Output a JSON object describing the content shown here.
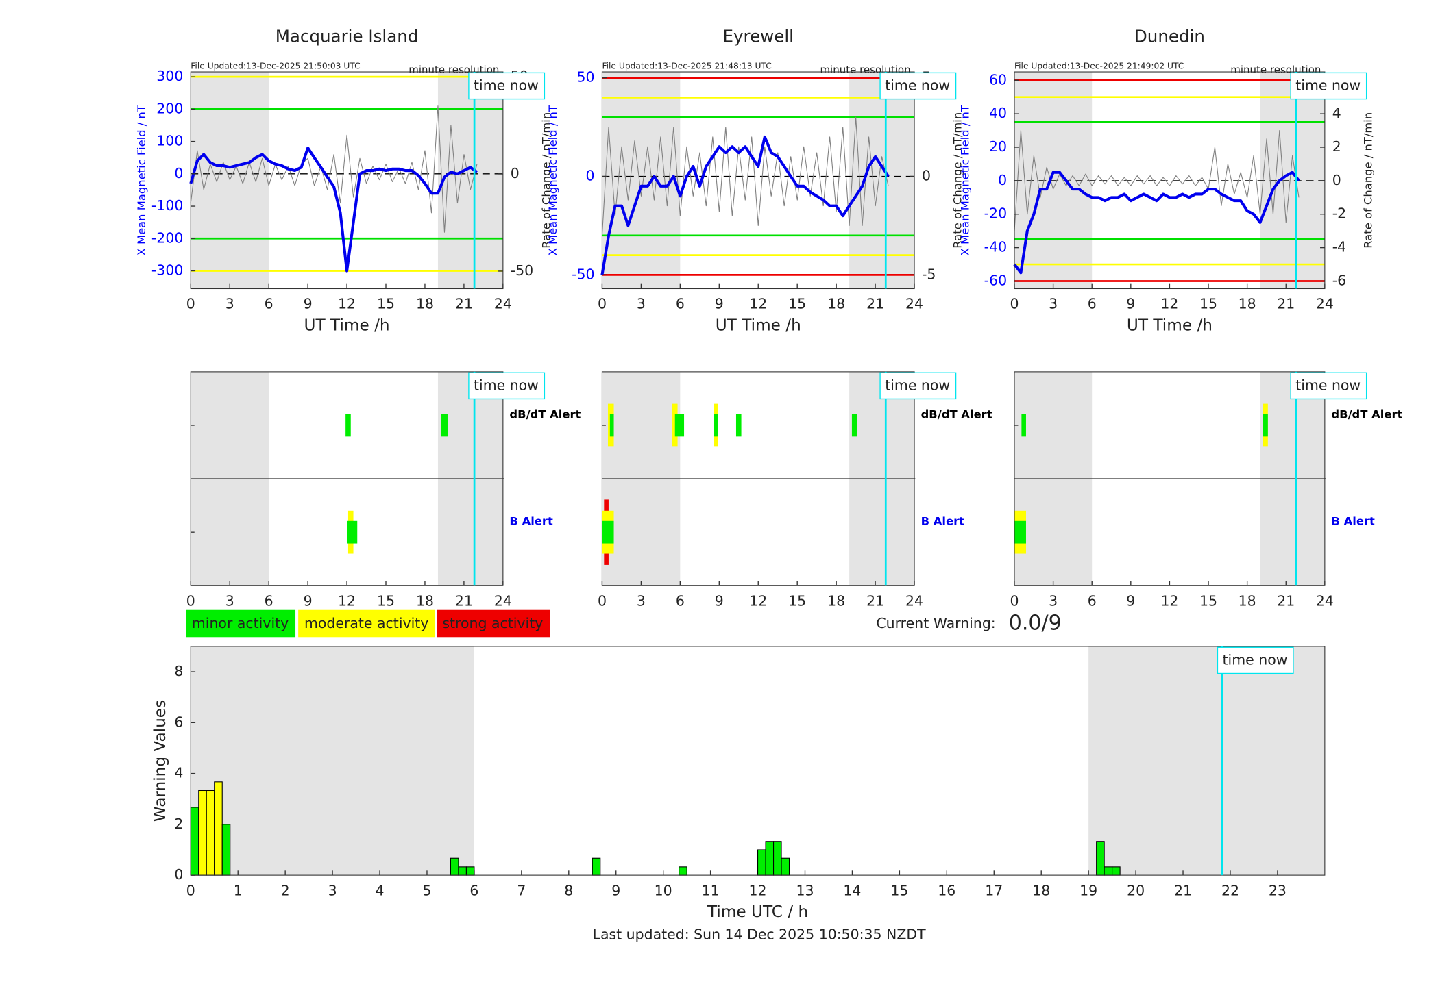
{
  "chart_data": [
    {
      "type": "line",
      "title": "Macquarie Island",
      "file_updated": "File Updated:13-Dec-2025 21:50:03 UTC",
      "resolution": "minute resolution",
      "time_now_label": "time now",
      "time_now": 21.8,
      "xlabel": "UT Time /h",
      "ylabel": "X Mean Magnetic Field / nT",
      "y2label": "Rate of Change / nT/min",
      "ycolor": "#0000ff",
      "xlim": [
        0,
        24
      ],
      "xticks": [
        0,
        3,
        6,
        9,
        12,
        15,
        18,
        21,
        24
      ],
      "ylim": [
        -355,
        315
      ],
      "yticks": [
        -300,
        -200,
        -100,
        0,
        100,
        200,
        300
      ],
      "y2lim": [
        -59,
        52.5
      ],
      "y2ticks": [
        -50,
        0,
        50
      ],
      "shaded": [
        [
          0,
          6
        ],
        [
          19,
          24
        ]
      ],
      "hlines": [
        {
          "value": 300,
          "color": "#ffff00"
        },
        {
          "value": 200,
          "color": "#00e000"
        },
        {
          "value": -200,
          "color": "#00e000"
        },
        {
          "value": -300,
          "color": "#ffff00"
        },
        {
          "value": 0,
          "color": "#000000",
          "dash": true
        }
      ],
      "x": [
        0,
        0.5,
        1,
        1.5,
        2,
        2.5,
        3,
        3.5,
        4,
        4.5,
        5,
        5.5,
        6,
        6.5,
        7,
        7.5,
        8,
        8.5,
        9,
        9.5,
        10,
        10.5,
        11,
        11.5,
        12,
        12.5,
        13,
        13.5,
        14,
        14.5,
        15,
        15.5,
        16,
        16.5,
        17,
        17.5,
        18,
        18.5,
        19,
        19.5,
        20,
        20.5,
        21,
        21.5,
        22
      ],
      "series": [
        {
          "color": "#808080",
          "axis": "y2",
          "values": [
            -15,
            12,
            -8,
            5,
            -4,
            6,
            -3,
            4,
            -5,
            6,
            -4,
            8,
            -6,
            5,
            -3,
            4,
            -6,
            5,
            8,
            -6,
            4,
            -8,
            10,
            -15,
            20,
            -12,
            8,
            -5,
            4,
            -3,
            5,
            -4,
            3,
            -5,
            6,
            -8,
            12,
            -20,
            35,
            -30,
            25,
            -15,
            10,
            -8,
            5
          ]
        },
        {
          "color": "#0000ee",
          "values": [
            -30,
            40,
            60,
            35,
            25,
            25,
            20,
            25,
            30,
            35,
            50,
            60,
            40,
            30,
            25,
            15,
            10,
            20,
            80,
            50,
            20,
            -10,
            -40,
            -120,
            -300,
            -150,
            0,
            10,
            10,
            15,
            10,
            15,
            15,
            10,
            10,
            -5,
            -30,
            -60,
            -60,
            -10,
            5,
            0,
            10,
            20,
            5
          ]
        }
      ]
    },
    {
      "type": "line",
      "title": "Eyrewell",
      "file_updated": "File Updated:13-Dec-2025 21:48:13 UTC",
      "resolution": "minute resolution",
      "time_now_label": "time now",
      "time_now": 21.8,
      "xlabel": "UT Time /h",
      "ylabel": "X Mean Magnetic Field / nT",
      "y2label": "Rate of Change / nT/min",
      "ycolor": "#0000ff",
      "xlim": [
        0,
        24
      ],
      "xticks": [
        0,
        3,
        6,
        9,
        12,
        15,
        18,
        21,
        24
      ],
      "ylim": [
        -57,
        53
      ],
      "yticks": [
        -50,
        0,
        50
      ],
      "y2lim": [
        -5.7,
        5.3
      ],
      "y2ticks": [
        -5,
        0,
        5
      ],
      "shaded": [
        [
          0,
          6
        ],
        [
          19,
          24
        ]
      ],
      "hlines": [
        {
          "value": 50,
          "color": "#ee0000"
        },
        {
          "value": 40,
          "color": "#ffff00"
        },
        {
          "value": 30,
          "color": "#00e000"
        },
        {
          "value": -30,
          "color": "#00e000"
        },
        {
          "value": -40,
          "color": "#ffff00"
        },
        {
          "value": -50,
          "color": "#ee0000"
        },
        {
          "value": 0,
          "color": "#000000",
          "dash": true
        }
      ],
      "x": [
        0,
        0.5,
        1,
        1.5,
        2,
        2.5,
        3,
        3.5,
        4,
        4.5,
        5,
        5.5,
        6,
        6.5,
        7,
        7.5,
        8,
        8.5,
        9,
        9.5,
        10,
        10.5,
        11,
        11.5,
        12,
        12.5,
        13,
        13.5,
        14,
        14.5,
        15,
        15.5,
        16,
        16.5,
        17,
        17.5,
        18,
        18.5,
        19,
        19.5,
        20,
        20.5,
        21,
        21.5,
        22
      ],
      "series": [
        {
          "color": "#808080",
          "axis": "y2",
          "values": [
            -3,
            2.5,
            -2,
            1.5,
            -1.2,
            1.8,
            -1,
            1.5,
            -1.2,
            2,
            -1.5,
            2.5,
            -2,
            1.5,
            -1,
            1.2,
            -1.5,
            2,
            -1.8,
            2.5,
            -2,
            1.5,
            -1.2,
            2,
            -2.5,
            1.5,
            -1,
            1.2,
            -1.5,
            1,
            -1.2,
            1.5,
            -1,
            1.2,
            -1.5,
            2,
            -1.8,
            2.5,
            -2.5,
            3,
            -2.5,
            2,
            -1.5,
            1,
            -0.5
          ]
        },
        {
          "color": "#0000ee",
          "values": [
            -50,
            -30,
            -15,
            -15,
            -25,
            -15,
            -5,
            -5,
            0,
            -5,
            -5,
            0,
            -10,
            0,
            5,
            -5,
            5,
            10,
            15,
            12,
            15,
            12,
            15,
            10,
            5,
            20,
            12,
            10,
            5,
            0,
            -5,
            -5,
            -8,
            -10,
            -12,
            -15,
            -15,
            -20,
            -15,
            -10,
            -5,
            5,
            10,
            5,
            0
          ]
        }
      ]
    },
    {
      "type": "line",
      "title": "Dunedin",
      "file_updated": "File Updated:13-Dec-2025 21:49:02 UTC",
      "resolution": "minute resolution",
      "time_now_label": "time now",
      "time_now": 21.8,
      "xlabel": "UT Time /h",
      "ylabel": "X Mean Magnetic Field / nT",
      "y2label": "Rate of Change / nT/min",
      "ycolor": "#0000ff",
      "xlim": [
        0,
        24
      ],
      "xticks": [
        0,
        3,
        6,
        9,
        12,
        15,
        18,
        21,
        24
      ],
      "ylim": [
        -64.5,
        65
      ],
      "yticks": [
        -60,
        -40,
        -20,
        0,
        20,
        40,
        60
      ],
      "y2lim": [
        -6.45,
        6.5
      ],
      "y2ticks": [
        -6,
        -4,
        -2,
        0,
        2,
        4,
        6
      ],
      "shaded": [
        [
          0,
          6
        ],
        [
          19,
          24
        ]
      ],
      "hlines": [
        {
          "value": 60,
          "color": "#ee0000"
        },
        {
          "value": 50,
          "color": "#ffff00"
        },
        {
          "value": 35,
          "color": "#00e000"
        },
        {
          "value": -35,
          "color": "#00e000"
        },
        {
          "value": -50,
          "color": "#ffff00"
        },
        {
          "value": -60,
          "color": "#ee0000"
        },
        {
          "value": 0,
          "color": "#000000",
          "dash": true
        }
      ],
      "x": [
        0,
        0.5,
        1,
        1.5,
        2,
        2.5,
        3,
        3.5,
        4,
        4.5,
        5,
        5.5,
        6,
        6.5,
        7,
        7.5,
        8,
        8.5,
        9,
        9.5,
        10,
        10.5,
        11,
        11.5,
        12,
        12.5,
        13,
        13.5,
        14,
        14.5,
        15,
        15.5,
        16,
        16.5,
        17,
        17.5,
        18,
        18.5,
        19,
        19.5,
        20,
        20.5,
        21,
        21.5,
        22
      ],
      "series": [
        {
          "color": "#808080",
          "axis": "y2",
          "values": [
            -3,
            3,
            -2,
            1.5,
            -1,
            0.8,
            -0.5,
            0.4,
            -0.3,
            0.3,
            -0.3,
            0.4,
            -0.3,
            0.3,
            -0.2,
            0.3,
            -0.3,
            0.2,
            -0.3,
            0.3,
            -0.2,
            0.3,
            -0.3,
            0.2,
            -0.3,
            0.3,
            -0.2,
            0.3,
            -0.3,
            0.2,
            -0.5,
            2,
            -1.5,
            1,
            -0.8,
            0.5,
            -1,
            1.5,
            -2,
            2.5,
            -2,
            3,
            -2.5,
            1.5,
            -1
          ]
        },
        {
          "color": "#0000ee",
          "values": [
            -50,
            -55,
            -30,
            -20,
            -5,
            -5,
            5,
            5,
            0,
            -5,
            -5,
            -8,
            -10,
            -10,
            -12,
            -10,
            -10,
            -8,
            -12,
            -10,
            -8,
            -10,
            -12,
            -8,
            -10,
            -10,
            -8,
            -10,
            -8,
            -8,
            -5,
            -5,
            -8,
            -10,
            -12,
            -12,
            -18,
            -20,
            -25,
            -15,
            -5,
            0,
            3,
            5,
            0
          ]
        }
      ]
    },
    {
      "type": "timeline",
      "time_now_label": "time now",
      "time_now": 21.8,
      "xlim": [
        0,
        24
      ],
      "xticks": [
        0,
        3,
        6,
        9,
        12,
        15,
        18,
        21,
        24
      ],
      "shaded": [
        [
          0,
          6
        ],
        [
          19,
          24
        ]
      ],
      "rows": [
        {
          "name": "dB/dT Alert",
          "color": "#000000",
          "events": [
            {
              "start": 11.9,
              "end": 12.3,
              "level": 1
            },
            {
              "start": 19.25,
              "end": 19.75,
              "level": 1
            }
          ]
        },
        {
          "name": "B Alert",
          "color": "#0000ee",
          "events": [
            {
              "start": 12.1,
              "end": 12.5,
              "level": 2
            },
            {
              "start": 12.0,
              "end": 12.8,
              "level": 1
            }
          ]
        }
      ]
    },
    {
      "type": "timeline",
      "time_now_label": "time now",
      "time_now": 21.8,
      "xlim": [
        0,
        24
      ],
      "xticks": [
        0,
        3,
        6,
        9,
        12,
        15,
        18,
        21,
        24
      ],
      "shaded": [
        [
          0,
          6
        ],
        [
          19,
          24
        ]
      ],
      "rows": [
        {
          "name": "dB/dT Alert",
          "color": "#000000",
          "events": [
            {
              "start": 0.45,
              "end": 0.9,
              "level": 2
            },
            {
              "start": 0.6,
              "end": 0.9,
              "level": 1
            },
            {
              "start": 5.4,
              "end": 5.8,
              "level": 2
            },
            {
              "start": 5.6,
              "end": 6.3,
              "level": 1
            },
            {
              "start": 8.6,
              "end": 8.9,
              "level": 2
            },
            {
              "start": 8.6,
              "end": 8.9,
              "level": 1
            },
            {
              "start": 10.3,
              "end": 10.7,
              "level": 1
            },
            {
              "start": 19.2,
              "end": 19.6,
              "level": 1
            }
          ]
        },
        {
          "name": "B Alert",
          "color": "#0000ee",
          "events": [
            {
              "start": 0.15,
              "end": 0.5,
              "level": 3
            },
            {
              "start": 0,
              "end": 0.9,
              "level": 2
            },
            {
              "start": 0,
              "end": 0.9,
              "level": 1
            }
          ]
        }
      ]
    },
    {
      "type": "timeline",
      "time_now_label": "time now",
      "time_now": 21.8,
      "xlim": [
        0,
        24
      ],
      "xticks": [
        0,
        3,
        6,
        9,
        12,
        15,
        18,
        21,
        24
      ],
      "shaded": [
        [
          0,
          6
        ],
        [
          19,
          24
        ]
      ],
      "rows": [
        {
          "name": "dB/dT Alert",
          "color": "#000000",
          "events": [
            {
              "start": 0.55,
              "end": 0.9,
              "level": 1
            },
            {
              "start": 19.2,
              "end": 19.6,
              "level": 2
            },
            {
              "start": 19.2,
              "end": 19.6,
              "level": 1
            }
          ]
        },
        {
          "name": "B Alert",
          "color": "#0000ee",
          "events": [
            {
              "start": 0,
              "end": 0.9,
              "level": 2
            },
            {
              "start": 0,
              "end": 0.9,
              "level": 1
            }
          ]
        }
      ]
    },
    {
      "type": "bar",
      "xlabel": "Time UTC / h",
      "ylabel": "Warning Values",
      "time_now_label": "time now",
      "time_now": 21.83,
      "xlim": [
        0,
        24
      ],
      "xticks": [
        0,
        1,
        2,
        3,
        4,
        5,
        6,
        7,
        8,
        9,
        10,
        11,
        12,
        13,
        14,
        15,
        16,
        17,
        18,
        19,
        20,
        21,
        22,
        23
      ],
      "ylim": [
        0,
        9
      ],
      "yticks": [
        0,
        2,
        4,
        6,
        8
      ],
      "shaded": [
        [
          0,
          6
        ],
        [
          19,
          24
        ]
      ],
      "bar_width": 0.1667,
      "x": [
        0,
        0.1667,
        0.3333,
        0.5,
        0.6667,
        5.5,
        5.6667,
        5.8333,
        8.5,
        10.3333,
        12.0,
        12.1667,
        12.3333,
        12.5,
        19.1667,
        19.3333,
        19.5
      ],
      "values": [
        2.67,
        3.33,
        3.33,
        3.67,
        2.0,
        0.67,
        0.33,
        0.33,
        0.67,
        0.33,
        1.0,
        1.33,
        1.33,
        0.67,
        1.33,
        0.33,
        0.33
      ],
      "colors": [
        "#00ee00",
        "#ffff00",
        "#ffff00",
        "#ffff00",
        "#00ee00",
        "#00ee00",
        "#00ee00",
        "#00ee00",
        "#00ee00",
        "#00ee00",
        "#00ee00",
        "#00ee00",
        "#00ee00",
        "#00ee00",
        "#00ee00",
        "#00ee00",
        "#00ee00"
      ]
    }
  ],
  "legend": [
    {
      "name": "minor activity",
      "color": "#00ee00"
    },
    {
      "name": "moderate activity",
      "color": "#ffff00"
    },
    {
      "name": "strong activity",
      "color": "#ee0000"
    }
  ],
  "current_warning": {
    "label": "Current Warning:",
    "value": "0.0/9"
  },
  "footer": "Last updated: Sun 14 Dec 2025 10:50:35 NZDT"
}
